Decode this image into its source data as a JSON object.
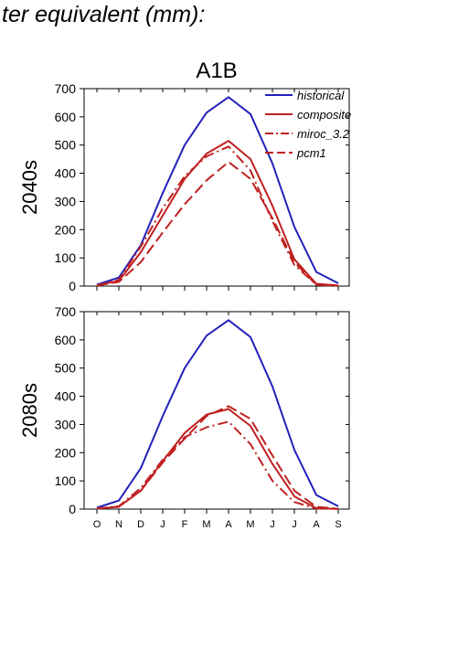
{
  "page": {
    "heading": "ter equivalent (mm):"
  },
  "colors": {
    "historical": "#2222bb",
    "future": "#c02020",
    "axis": "#000000"
  },
  "chart_data": [
    {
      "type": "line",
      "title": "A1B",
      "ylabel": "2040s",
      "ylim": [
        0,
        700
      ],
      "yticks": [
        0,
        100,
        200,
        300,
        400,
        500,
        600,
        700
      ],
      "categories": [
        "O",
        "N",
        "D",
        "J",
        "F",
        "M",
        "A",
        "M",
        "J",
        "J",
        "A",
        "S"
      ],
      "show_xticklabels": false,
      "legend": {
        "placement": "top-right"
      },
      "series": [
        {
          "name": "historical",
          "color": "#2222bb",
          "dash": "solid",
          "values": [
            5,
            30,
            145,
            330,
            500,
            615,
            670,
            610,
            435,
            210,
            50,
            10
          ]
        },
        {
          "name": "composite",
          "color": "#c02020",
          "dash": "solid",
          "values": [
            3,
            18,
            120,
            250,
            380,
            470,
            515,
            450,
            285,
            95,
            8,
            2
          ]
        },
        {
          "name": "miroc_3.2",
          "color": "#c02020",
          "dash": "dashdot",
          "values": [
            2,
            22,
            140,
            275,
            390,
            460,
            495,
            410,
            230,
            75,
            5,
            1
          ]
        },
        {
          "name": "pcm1",
          "color": "#c02020",
          "dash": "dashed",
          "values": [
            2,
            15,
            85,
            190,
            290,
            375,
            440,
            380,
            240,
            85,
            5,
            1
          ]
        }
      ]
    },
    {
      "type": "line",
      "title": "",
      "ylabel": "2080s",
      "ylim": [
        0,
        700
      ],
      "yticks": [
        0,
        100,
        200,
        300,
        400,
        500,
        600,
        700
      ],
      "categories": [
        "O",
        "N",
        "D",
        "J",
        "F",
        "M",
        "A",
        "M",
        "J",
        "J",
        "A",
        "S"
      ],
      "show_xticklabels": true,
      "series": [
        {
          "name": "historical",
          "color": "#2222bb",
          "dash": "solid",
          "values": [
            5,
            30,
            145,
            330,
            500,
            615,
            670,
            610,
            435,
            210,
            50,
            10
          ]
        },
        {
          "name": "composite",
          "color": "#c02020",
          "dash": "solid",
          "values": [
            2,
            8,
            65,
            170,
            270,
            335,
            355,
            295,
            160,
            45,
            3,
            1
          ]
        },
        {
          "name": "miroc_3.2",
          "color": "#c02020",
          "dash": "dashdot",
          "values": [
            2,
            10,
            75,
            175,
            255,
            290,
            310,
            230,
            100,
            25,
            2,
            1
          ]
        },
        {
          "name": "pcm1",
          "color": "#c02020",
          "dash": "dashed",
          "values": [
            2,
            8,
            65,
            165,
            250,
            330,
            365,
            320,
            190,
            65,
            8,
            1
          ]
        }
      ]
    }
  ]
}
